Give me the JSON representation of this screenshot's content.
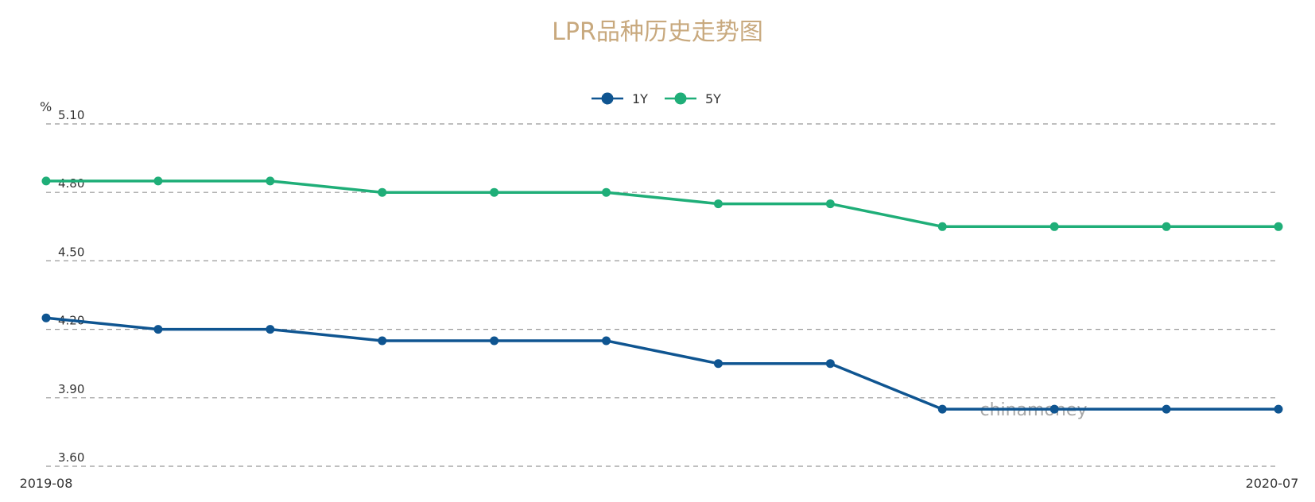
{
  "chart_data": {
    "type": "line",
    "title": "LPR品种历史走势图",
    "ylabel": "%",
    "xlabel": "",
    "ylim": [
      3.6,
      5.1
    ],
    "yticks": [
      3.6,
      3.9,
      4.2,
      4.5,
      4.8,
      5.1
    ],
    "ytick_labels": [
      "3.60",
      "3.90",
      "4.20",
      "4.50",
      "4.80",
      "5.10"
    ],
    "x": [
      "2019-08",
      "2019-09",
      "2019-10",
      "2019-11",
      "2019-12",
      "2020-01",
      "2020-02",
      "2020-03",
      "2020-04",
      "2020-05",
      "2020-06",
      "2020-07"
    ],
    "x_tick_labels_shown": [
      "2019-08",
      "2020-07"
    ],
    "grid": "horizontal-dashed",
    "legend_position": "top-center",
    "watermark": "chinamoney",
    "series": [
      {
        "name": "1Y",
        "color": "#0f5591",
        "values": [
          4.25,
          4.2,
          4.2,
          4.15,
          4.15,
          4.15,
          4.05,
          4.05,
          3.85,
          3.85,
          3.85,
          3.85
        ]
      },
      {
        "name": "5Y",
        "color": "#1fae78",
        "values": [
          4.85,
          4.85,
          4.85,
          4.8,
          4.8,
          4.8,
          4.75,
          4.75,
          4.65,
          4.65,
          4.65,
          4.65
        ]
      }
    ]
  },
  "colors": {
    "title": "#c8a97e",
    "axis_text": "#333333",
    "grid": "#999999",
    "axis_line": "#cccccc",
    "watermark": "#9a9a9a"
  }
}
